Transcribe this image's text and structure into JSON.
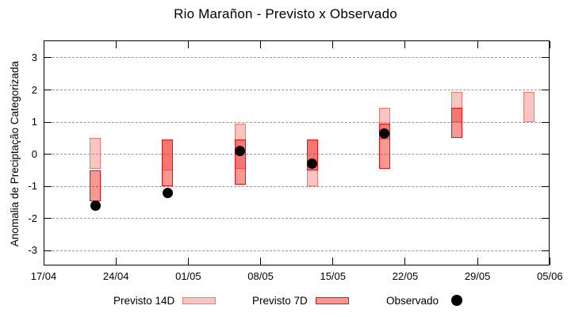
{
  "chart_data": {
    "type": "bar",
    "subtype": "forecast-range-bars-with-observations",
    "title": "Rio Marañon - Previsto x Observado",
    "ylabel": "Anomalia de Preciptação Categorizada",
    "xlabel": "",
    "x_tick_labels": [
      "17/04",
      "24/04",
      "01/05",
      "08/05",
      "15/05",
      "22/05",
      "29/05",
      "05/06"
    ],
    "y_ticks": [
      3,
      2,
      1,
      0,
      -1,
      -2,
      -3
    ],
    "ylim": [
      -3.45,
      3.55
    ],
    "grid": true,
    "legend_position": "bottom",
    "colors": {
      "previsto_14d_fill": "rgba(236,88,80,0.35)",
      "previsto_14d_border": "rgba(233,90,82,0.7)",
      "previsto_7d_fill": "rgba(240,25,15,0.45)",
      "previsto_7d_border": "#e41310",
      "observado": "#000000",
      "grid": "#999999",
      "frame": "#000000"
    },
    "series": [
      {
        "name": "Previsto 14D",
        "type": "range-bar"
      },
      {
        "name": "Previsto 7D",
        "type": "range-bar"
      },
      {
        "name": "Observado",
        "type": "scatter"
      }
    ],
    "groups": [
      {
        "date": "22/04",
        "x_day": 5,
        "previsto_14d": [
          -0.45,
          0.5
        ],
        "previsto_7d": [
          -1.45,
          -0.5
        ],
        "observado": -1.6
      },
      {
        "date": "29/04",
        "x_day": 12,
        "previsto_14d": [
          -0.5,
          0.45
        ],
        "previsto_7d": [
          -1.0,
          0.45
        ],
        "observado": -1.2
      },
      {
        "date": "06/05",
        "x_day": 19,
        "previsto_14d": [
          -0.45,
          0.95
        ],
        "previsto_7d": [
          -0.95,
          0.45
        ],
        "observado": 0.1
      },
      {
        "date": "13/05",
        "x_day": 26,
        "previsto_14d": [
          -1.0,
          0.45
        ],
        "previsto_7d": [
          -0.5,
          0.45
        ],
        "observado": -0.3
      },
      {
        "date": "20/05",
        "x_day": 33,
        "previsto_14d": [
          0.45,
          1.45
        ],
        "previsto_7d": [
          -0.45,
          0.95
        ],
        "observado": 0.65
      },
      {
        "date": "27/05",
        "x_day": 40,
        "previsto_14d": [
          1.0,
          1.95
        ],
        "previsto_7d": [
          0.5,
          1.45
        ],
        "observado": null
      },
      {
        "date": "03/06",
        "x_day": 47,
        "previsto_14d": [
          1.0,
          1.95
        ],
        "previsto_7d": null,
        "observado": null
      }
    ]
  }
}
